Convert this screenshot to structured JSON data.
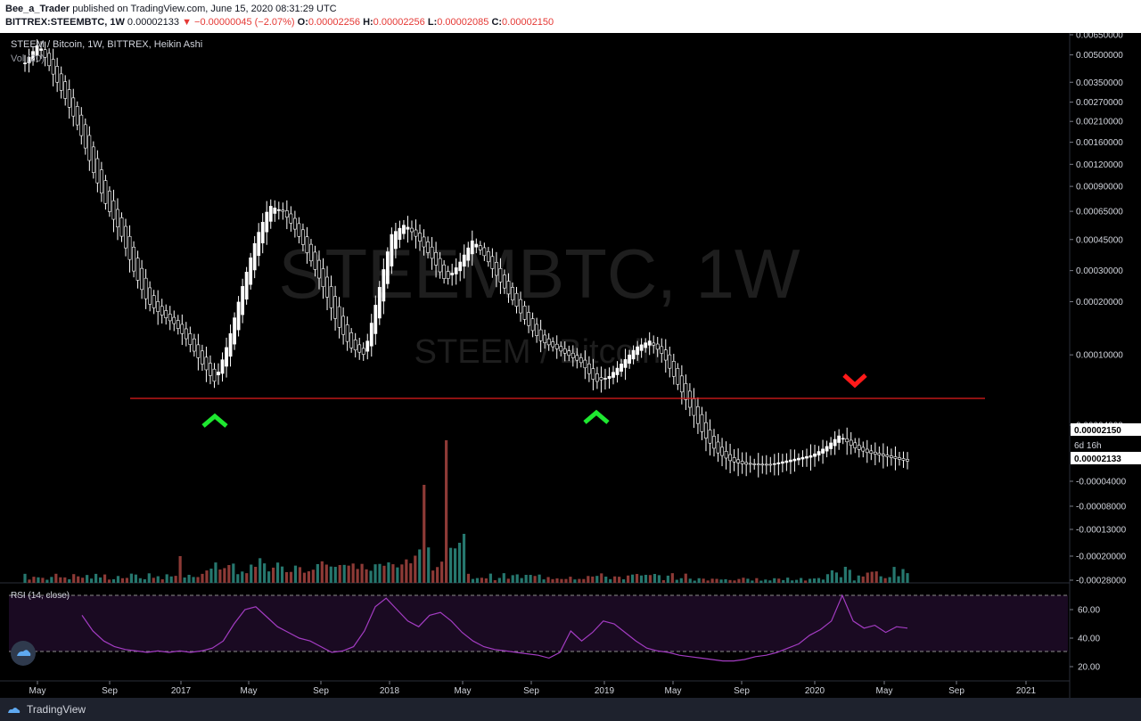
{
  "header": {
    "author": "Bee_a_Trader",
    "published": " published on TradingView.com, June 15, 2020 08:31:29 UTC",
    "symbol": "BITTREX:STEEMBTC, 1W",
    "price": "0.00002133",
    "change": "▼ −0.00000045 (−2.07%)",
    "o_label": "O:",
    "o_value": "0.00002256",
    "h_label": "H:",
    "h_value": "0.00002256",
    "l_label": "L:",
    "l_value": "0.00002085",
    "c_label": "C:",
    "c_value": "0.00002150"
  },
  "legend": {
    "main": "STEEM / Bitcoin, 1W, BITTREX, Heikin Ashi",
    "vol": "Vol (20)",
    "rsi": "RSI (14, close)"
  },
  "watermark": {
    "big": "STEEMBTC, 1W",
    "small": "STEEM / Bitcoin"
  },
  "price_badges": {
    "last": "0.00002150",
    "countdown": "6d 16h",
    "cur": "0.00002133"
  },
  "footer": {
    "brand": "TradingView"
  },
  "colors": {
    "bg": "#000000",
    "candle": "#ffffff",
    "line": "#e21c1c",
    "up_marker": "#1ee830",
    "down_marker": "#ff1a1a",
    "vol_up": "#26776e",
    "vol_down": "#8d3a36",
    "rsi_line": "#a33cc2",
    "rsi_band": "#1a0a22"
  },
  "icons": [
    "tradingview-logo-icon",
    "up-chevron-icon",
    "down-chevron-icon"
  ],
  "chart_data": [
    {
      "type": "candlestick",
      "title": "STEEM / Bitcoin, 1W, BITTREX, Heikin Ashi",
      "price_axis_ticks": [
        "0.00650000",
        "0.00500000",
        "0.00350000",
        "0.00270000",
        "0.00210000",
        "0.00160000",
        "0.00120000",
        "0.00090000",
        "0.00065000",
        "0.00045000",
        "0.00030000",
        "0.00020000",
        "0.00010000",
        "0.00004000"
      ],
      "time_axis_ticks": [
        "May",
        "Sep",
        "2017",
        "May",
        "Sep",
        "2018",
        "May",
        "Sep",
        "2019",
        "May",
        "Sep",
        "2020",
        "May",
        "Sep",
        "2021"
      ],
      "horizontal_line": 7e-05,
      "markers": [
        {
          "type": "up",
          "date": "2017-03"
        },
        {
          "type": "up",
          "date": "2018-12"
        },
        {
          "type": "down",
          "date": "2020-03"
        }
      ],
      "close_path": [
        0.0045,
        0.0058,
        0.004,
        0.0028,
        0.0019,
        0.0011,
        0.0007,
        0.0005,
        0.0003,
        0.0002,
        0.00017,
        0.00015,
        0.00012,
        9e-05,
        7e-05,
        0.00012,
        0.00024,
        0.00045,
        0.0007,
        0.00065,
        0.0005,
        0.00035,
        0.00024,
        0.00015,
        0.00011,
        0.0001,
        0.00022,
        0.00048,
        0.00055,
        0.00045,
        0.00035,
        0.00026,
        0.00033,
        0.00045,
        0.00035,
        0.00026,
        0.0002,
        0.00015,
        0.00012,
        0.00011,
        0.0001,
        9e-05,
        7e-05,
        7.5e-05,
        9e-05,
        0.00011,
        0.00012,
        0.0001,
        7e-05,
        5e-05,
        3.5e-05,
        2.8e-05,
        2.5e-05,
        2.4e-05,
        2.4e-05,
        2.4e-05,
        2.5e-05,
        2.6e-05,
        2.7e-05,
        3e-05,
        3.5e-05,
        3e-05,
        2.8e-05,
        2.7e-05,
        2.6e-05,
        2.5e-05
      ]
    },
    {
      "type": "bar",
      "title": "Vol (20)",
      "axis_ticks": [
        "-0.00004000",
        "-0.00008000",
        "-0.00013000",
        "-0.00020000",
        "-0.00028000"
      ]
    },
    {
      "type": "line",
      "title": "RSI (14, close)",
      "ylim": [
        20,
        70
      ],
      "axis_ticks": [
        "60.00",
        "40.00",
        "20.00"
      ],
      "band": [
        30,
        70
      ],
      "values": [
        56,
        45,
        38,
        34,
        32,
        31,
        30,
        31,
        30,
        31,
        30,
        31,
        33,
        38,
        50,
        60,
        62,
        55,
        48,
        44,
        40,
        38,
        34,
        30,
        31,
        34,
        45,
        62,
        68,
        60,
        52,
        48,
        56,
        58,
        52,
        44,
        38,
        34,
        32,
        31,
        30,
        29,
        28,
        26,
        30,
        45,
        38,
        44,
        52,
        50,
        44,
        38,
        33,
        31,
        30,
        28,
        27,
        26,
        25,
        24,
        24,
        25,
        27,
        28,
        30,
        33,
        36,
        42,
        46,
        52,
        70,
        52,
        47,
        49,
        44,
        48,
        47
      ]
    }
  ]
}
